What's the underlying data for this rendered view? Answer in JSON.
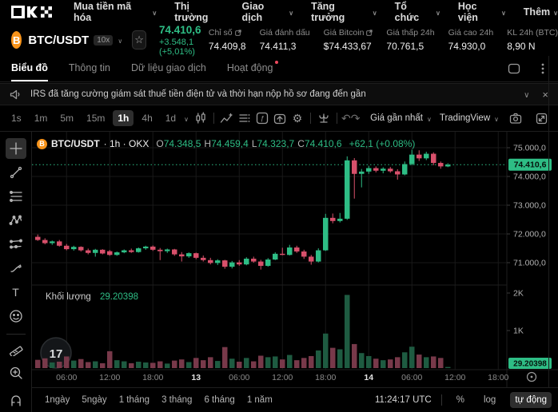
{
  "nav": {
    "brand": "OKX",
    "items": [
      {
        "label": "Mua tiền mã hóa",
        "chevron": true
      },
      {
        "label": "Thị trường",
        "chevron": false
      },
      {
        "label": "Giao dịch",
        "chevron": true
      },
      {
        "label": "Tăng trưởng",
        "chevron": true
      },
      {
        "label": "Tổ chức",
        "chevron": true
      },
      {
        "label": "Học viện",
        "chevron": true
      },
      {
        "label": "Thêm",
        "chevron": true
      }
    ]
  },
  "symbol": {
    "pair": "BTC/USDT",
    "leverage": "10x",
    "price": "74.410,6",
    "change": "+3.548,1 (+5,01%)",
    "stats": [
      {
        "label": "Chỉ số",
        "external": true,
        "value": "74.409,8"
      },
      {
        "label": "Giá đánh dấu",
        "external": false,
        "value": "74.411,3"
      },
      {
        "label": "Giá Bitcoin",
        "external": true,
        "value": "$74.433,67"
      },
      {
        "label": "Giá thấp 24h",
        "external": false,
        "value": "70.761,5"
      },
      {
        "label": "Giá cao 24h",
        "external": false,
        "value": "74.930,0"
      },
      {
        "label": "KL 24h (BTC)",
        "external": false,
        "value": "8,90 N"
      }
    ]
  },
  "tabs": [
    {
      "label": "Biểu đồ",
      "active": true,
      "dot": false
    },
    {
      "label": "Thông tin",
      "active": false,
      "dot": false
    },
    {
      "label": "Dữ liệu giao dịch",
      "active": false,
      "dot": false
    },
    {
      "label": "Hoạt động",
      "active": false,
      "dot": true
    }
  ],
  "news": {
    "text": "IRS đã tăng cường giám sát thuế tiền điện tử và thời hạn nộp hồ sơ đang đến gần"
  },
  "toolbar": {
    "intervals": [
      "1s",
      "1m",
      "5m",
      "15m",
      "1h",
      "4h",
      "1d"
    ],
    "selected_interval": "1h",
    "price_mode": "Giá gần nhất",
    "provider": "TradingView"
  },
  "chart": {
    "legend": {
      "pair": "BTC/USDT",
      "meta": "· 1h · OKX",
      "items": [
        {
          "k": "O",
          "v": "74.348,5"
        },
        {
          "k": "H",
          "v": "74.459,4"
        },
        {
          "k": "L",
          "v": "74.323,7"
        },
        {
          "k": "C",
          "v": "74.410,6"
        }
      ],
      "change": "+62,1 (+0.08%)"
    },
    "volume_label": "Khối lượng",
    "volume_value": "29.20398",
    "last_price_label": "74.410,6",
    "last_price": 74410.6,
    "last_volume_label": "29.20398",
    "price_axis": [
      {
        "label": "75.000,0",
        "price": 75000
      },
      {
        "label": "74.000,0",
        "price": 74000
      },
      {
        "label": "73.000,0",
        "price": 73000
      },
      {
        "label": "72.000,0",
        "price": 72000
      },
      {
        "label": "71.000,0",
        "price": 71000
      }
    ],
    "volume_axis": [
      {
        "label": "2K",
        "value": 2000
      },
      {
        "label": "1K",
        "value": 1000
      }
    ],
    "time_axis": [
      {
        "label": "06:00",
        "index": 4,
        "bold": false
      },
      {
        "label": "12:00",
        "index": 10,
        "bold": false
      },
      {
        "label": "18:00",
        "index": 16,
        "bold": false
      },
      {
        "label": "13",
        "index": 22,
        "bold": true
      },
      {
        "label": "06:00",
        "index": 28,
        "bold": false
      },
      {
        "label": "12:00",
        "index": 34,
        "bold": false
      },
      {
        "label": "18:00",
        "index": 40,
        "bold": false
      },
      {
        "label": "14",
        "index": 46,
        "bold": true
      },
      {
        "label": "06:00",
        "index": 52,
        "bold": false
      },
      {
        "label": "12:00",
        "index": 58,
        "bold": false
      },
      {
        "label": "18:00",
        "index": 64,
        "bold": false
      }
    ],
    "watermark": "17"
  },
  "chart_data": {
    "type": "candlestick",
    "symbol": "BTC/USDT",
    "interval": "1h",
    "ylabel": "price (USDT)",
    "price_range": [
      70600,
      75200
    ],
    "volume_range": [
      0,
      2000
    ],
    "note": "candles are [open, high, low, close, volume]",
    "candles": [
      [
        71900,
        71980,
        71760,
        71790,
        220
      ],
      [
        71790,
        71850,
        71640,
        71680,
        260
      ],
      [
        71680,
        71770,
        71620,
        71740,
        150
      ],
      [
        71740,
        71790,
        71560,
        71590,
        170
      ],
      [
        71590,
        71650,
        71430,
        71470,
        310
      ],
      [
        71470,
        71590,
        71420,
        71550,
        200
      ],
      [
        71550,
        71570,
        71390,
        71430,
        240
      ],
      [
        71430,
        71490,
        71290,
        71340,
        160
      ],
      [
        71340,
        71480,
        71210,
        71450,
        180
      ],
      [
        71450,
        71470,
        71290,
        71320,
        130
      ],
      [
        71400,
        71440,
        71240,
        71270,
        450
      ],
      [
        71270,
        71390,
        71240,
        71360,
        210
      ],
      [
        71360,
        71460,
        71330,
        71430,
        180
      ],
      [
        71430,
        71490,
        71340,
        71370,
        130
      ],
      [
        71370,
        71530,
        71350,
        71500,
        170
      ],
      [
        71500,
        71590,
        71450,
        71560,
        150
      ],
      [
        71560,
        71600,
        71410,
        71450,
        140
      ],
      [
        71450,
        71510,
        71090,
        71400,
        180
      ],
      [
        71400,
        71490,
        71340,
        71460,
        120
      ],
      [
        71460,
        71480,
        71240,
        71290,
        200
      ],
      [
        71290,
        71370,
        71040,
        71220,
        230
      ],
      [
        71220,
        71360,
        71170,
        71330,
        160
      ],
      [
        71330,
        71350,
        71120,
        71170,
        270
      ],
      [
        71170,
        71250,
        71040,
        71090,
        210
      ],
      [
        71090,
        71170,
        70940,
        70990,
        290
      ],
      [
        70990,
        71120,
        70920,
        71080,
        190
      ],
      [
        71080,
        71100,
        70790,
        70860,
        560
      ],
      [
        70860,
        71060,
        70800,
        71010,
        250
      ],
      [
        71010,
        71090,
        70890,
        70940,
        170
      ],
      [
        70940,
        71190,
        70910,
        71140,
        270
      ],
      [
        71140,
        71210,
        71000,
        71040,
        180
      ],
      [
        71040,
        71100,
        70760,
        70890,
        330
      ],
      [
        70890,
        71160,
        70860,
        71110,
        290
      ],
      [
        71110,
        71360,
        71090,
        71310,
        310
      ],
      [
        71310,
        71520,
        71260,
        71270,
        230
      ],
      [
        71270,
        71620,
        71250,
        71530,
        350
      ],
      [
        71530,
        71590,
        71340,
        71390,
        210
      ],
      [
        71390,
        71450,
        71130,
        71210,
        270
      ],
      [
        71210,
        71270,
        70930,
        71040,
        320
      ],
      [
        71040,
        71500,
        71010,
        71430,
        470
      ],
      [
        71430,
        72700,
        71410,
        72560,
        920
      ],
      [
        72560,
        72710,
        72370,
        72450,
        540
      ],
      [
        72450,
        72730,
        72400,
        72530,
        500
      ],
      [
        72530,
        74700,
        72490,
        74560,
        1950
      ],
      [
        74560,
        74640,
        73230,
        74090,
        640
      ],
      [
        74090,
        74260,
        73620,
        74170,
        400
      ],
      [
        74170,
        74370,
        74090,
        74290,
        320
      ],
      [
        74290,
        74350,
        74140,
        74200,
        250
      ],
      [
        74200,
        74320,
        74110,
        74270,
        210
      ],
      [
        74270,
        74330,
        74130,
        74180,
        230
      ],
      [
        74180,
        74250,
        73890,
        74070,
        290
      ],
      [
        74070,
        74520,
        74040,
        74430,
        420
      ],
      [
        74430,
        74930,
        74390,
        74760,
        570
      ],
      [
        74760,
        74910,
        74540,
        74630,
        360
      ],
      [
        74630,
        74860,
        74570,
        74790,
        290
      ],
      [
        74790,
        74840,
        74390,
        74470,
        310
      ],
      [
        74470,
        74520,
        74270,
        74350,
        270
      ],
      [
        74348.5,
        74459.4,
        74323.7,
        74410.6,
        29.2
      ]
    ]
  },
  "bottom": {
    "ranges": [
      "1ngày",
      "5ngày",
      "1 tháng",
      "3 tháng",
      "6 tháng",
      "1 năm"
    ],
    "clock": "11:24:17 UTC",
    "percent": "%",
    "log": "log",
    "auto": "tự động"
  },
  "colors": {
    "up": "#2ebd85",
    "down": "#d8506b",
    "vol_up": "#1e5b41",
    "vol_down": "#78394a",
    "accent_green": "#2ebd85",
    "badge_text": "#06130d",
    "grid": "#191919",
    "axis_text": "#b0b0b0"
  }
}
